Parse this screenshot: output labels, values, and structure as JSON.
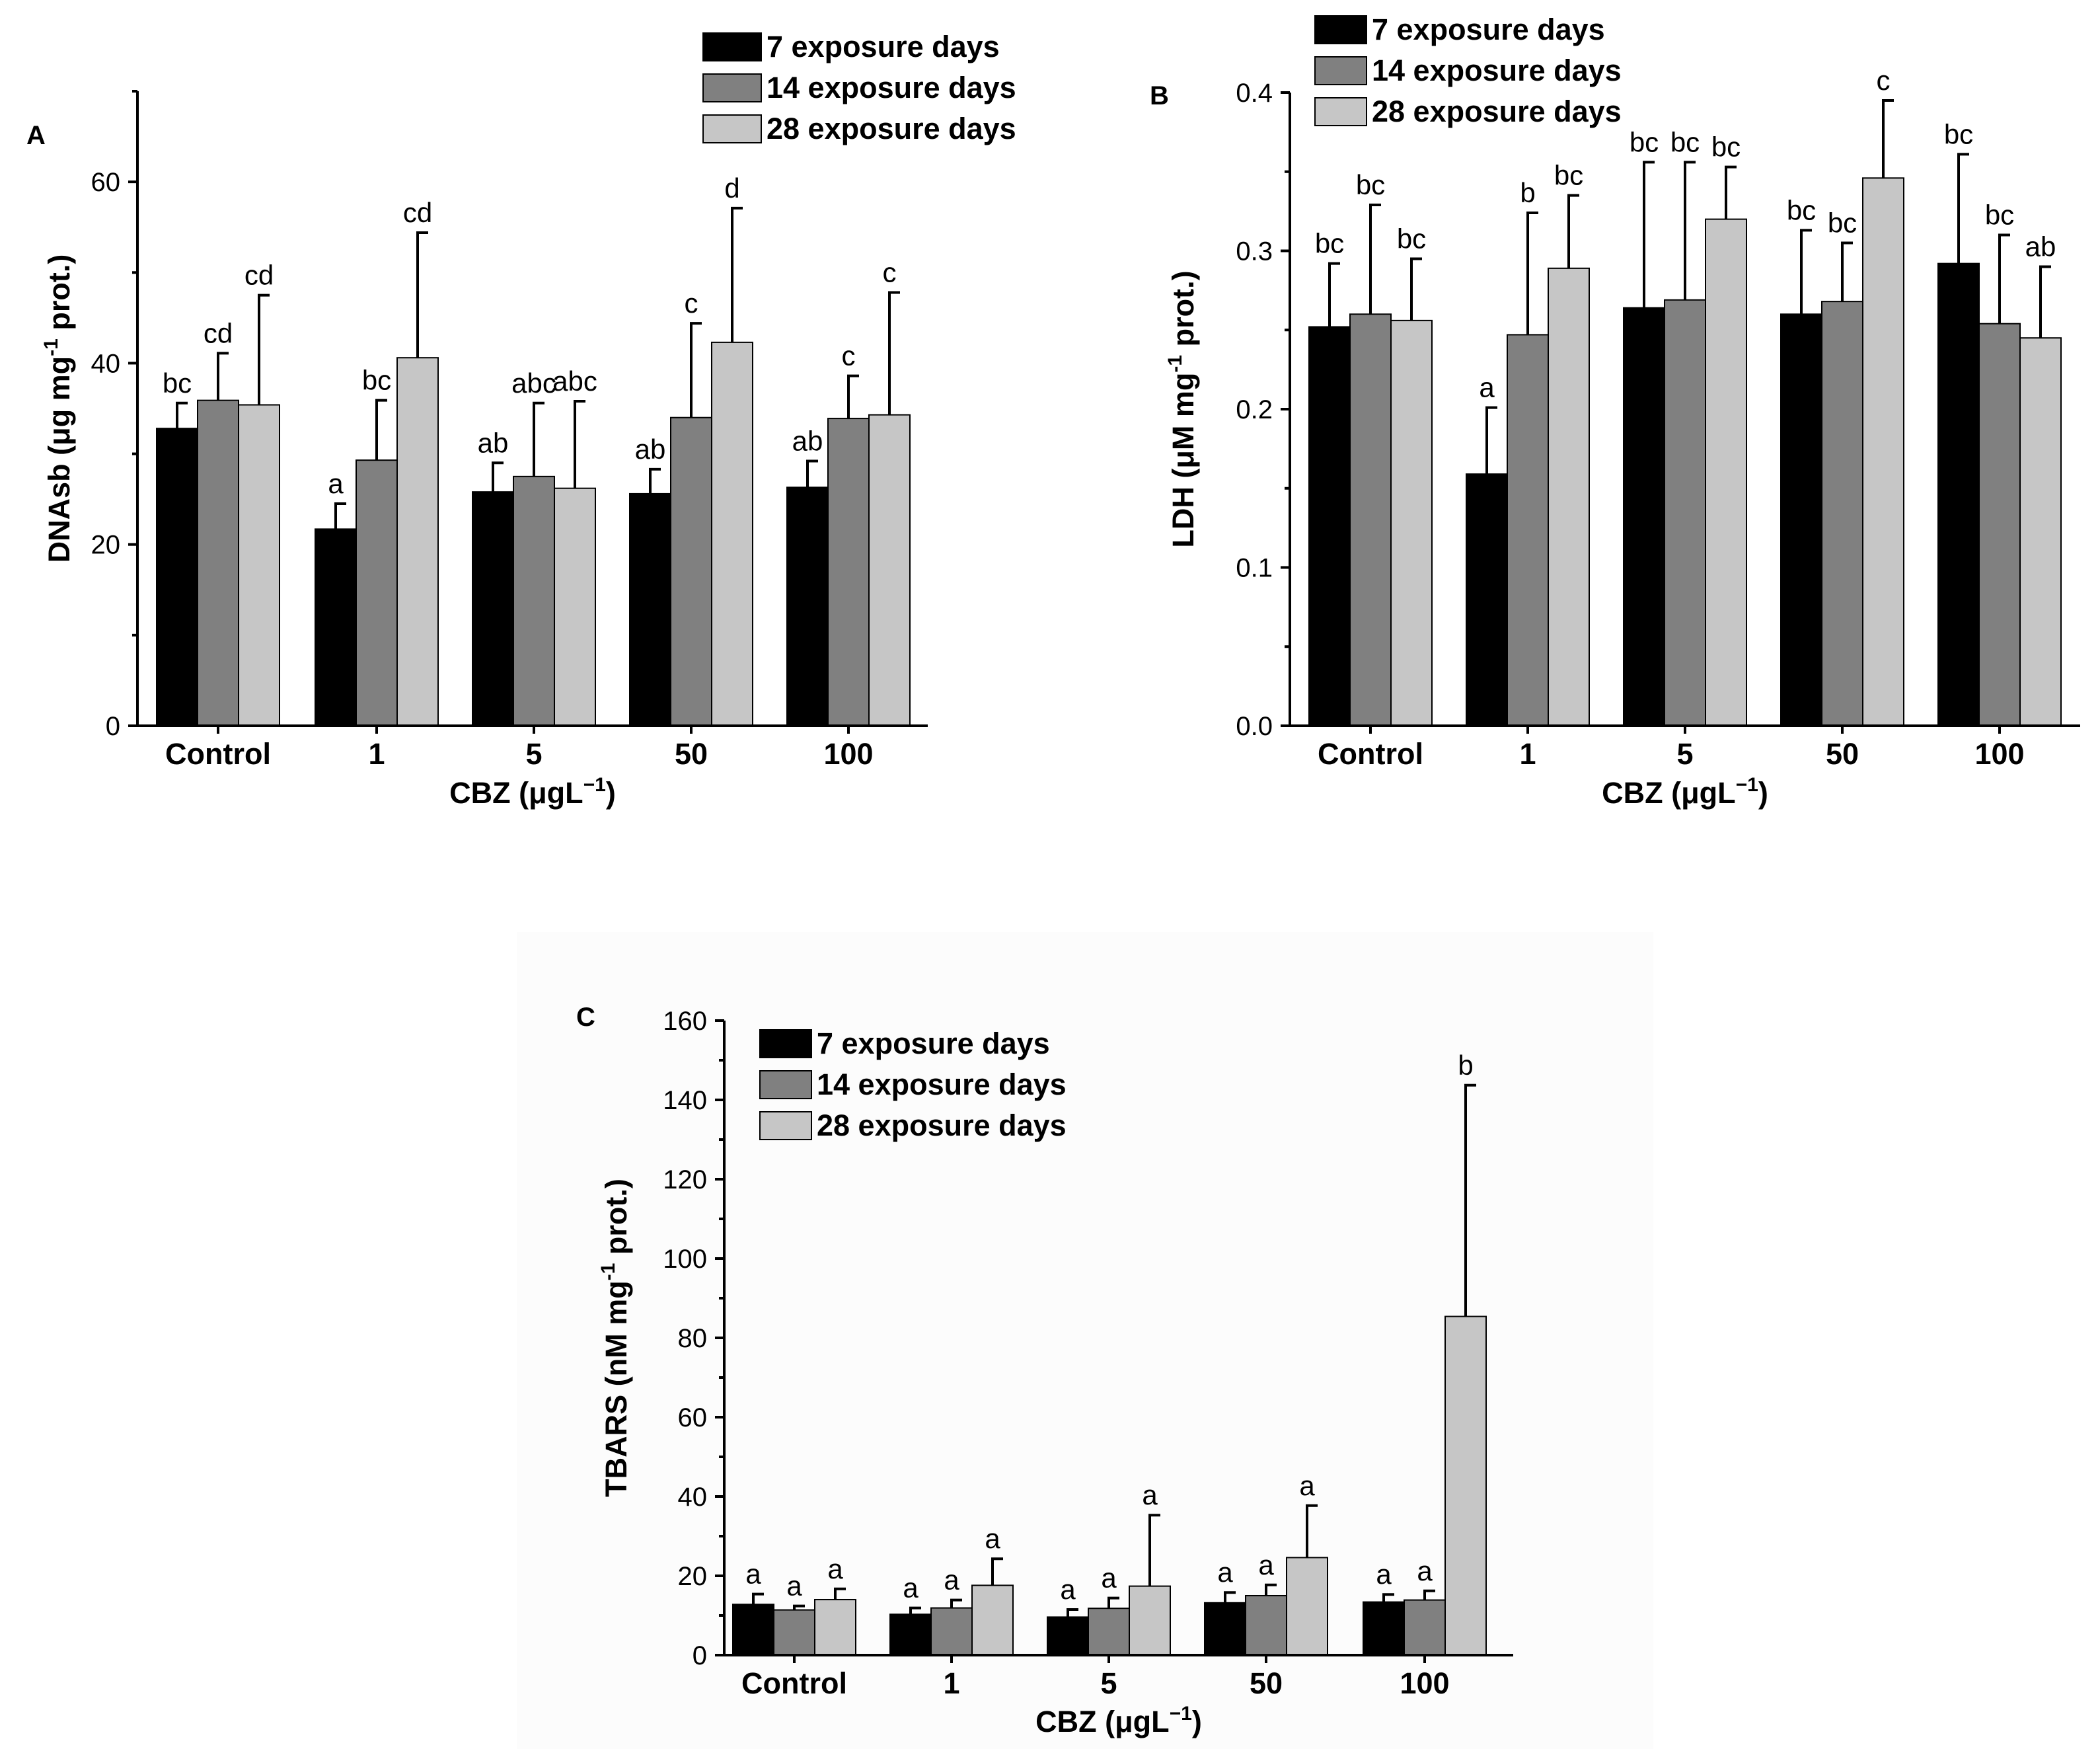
{
  "chart_data": [
    {
      "type": "bar",
      "panel_label": "A",
      "categories": [
        "Control",
        "1",
        "5",
        "50",
        "100"
      ],
      "xlabel_main": "CBZ (μgL",
      "xlabel_sup": "−1",
      "xlabel_end": ")",
      "ylabel_main": "DNAsb (μg mg",
      "ylabel_sup": "-1",
      "ylabel_end": " prot.)",
      "ylim": [
        0,
        70
      ],
      "yticks": [
        0,
        20,
        40,
        60
      ],
      "ytick_labels": [
        "0",
        "20",
        "40",
        "60"
      ],
      "minor_step": 10,
      "decimals": 0,
      "legend_position": "top-right",
      "series": [
        {
          "name": "7 exposure days",
          "color": "#000000",
          "values": [
            32.8,
            21.7,
            25.8,
            25.6,
            26.3
          ],
          "errors": [
            2.8,
            2.8,
            3.2,
            2.7,
            2.9
          ],
          "letters": [
            "bc",
            "a",
            "ab",
            "ab",
            "ab"
          ]
        },
        {
          "name": "14 exposure days",
          "color": "#808080",
          "values": [
            35.9,
            29.3,
            27.5,
            34.0,
            33.9
          ],
          "errors": [
            5.2,
            6.6,
            8.1,
            10.4,
            4.7
          ],
          "letters": [
            "cd",
            "bc",
            "abc",
            "c",
            "c"
          ]
        },
        {
          "name": "28 exposure days",
          "color": "#c6c6c6",
          "values": [
            35.4,
            40.6,
            26.2,
            42.3,
            34.3
          ],
          "errors": [
            12.1,
            13.8,
            9.6,
            14.8,
            13.5
          ],
          "letters": [
            "cd",
            "cd",
            "abc",
            "d",
            "c"
          ]
        }
      ]
    },
    {
      "type": "bar",
      "panel_label": "B",
      "categories": [
        "Control",
        "1",
        "5",
        "50",
        "100"
      ],
      "xlabel_main": "CBZ (μgL",
      "xlabel_sup": "−1",
      "xlabel_end": ")",
      "ylabel_main": "LDH (μM mg",
      "ylabel_sup": "-1",
      "ylabel_end": " prot.)",
      "ylim": [
        0,
        0.4
      ],
      "yticks": [
        0,
        0.1,
        0.2,
        0.3,
        0.4
      ],
      "ytick_labels": [
        "0.0",
        "0.1",
        "0.2",
        "0.3",
        "0.4"
      ],
      "minor_step": 0.05,
      "decimals": 1,
      "legend_position": "top-left",
      "series": [
        {
          "name": "7 exposure days",
          "color": "#000000",
          "values": [
            0.252,
            0.159,
            0.264,
            0.26,
            0.292
          ],
          "errors": [
            0.04,
            0.042,
            0.092,
            0.053,
            0.069
          ],
          "letters": [
            "bc",
            "a",
            "bc",
            "bc",
            "bc"
          ]
        },
        {
          "name": "14 exposure days",
          "color": "#808080",
          "values": [
            0.26,
            0.247,
            0.269,
            0.268,
            0.254
          ],
          "errors": [
            0.069,
            0.077,
            0.087,
            0.037,
            0.056
          ],
          "letters": [
            "bc",
            "b",
            "bc",
            "bc",
            "bc"
          ]
        },
        {
          "name": "28 exposure days",
          "color": "#c6c6c6",
          "values": [
            0.256,
            0.289,
            0.32,
            0.346,
            0.245
          ],
          "errors": [
            0.039,
            0.046,
            0.033,
            0.049,
            0.045
          ],
          "letters": [
            "bc",
            "bc",
            "bc",
            "c",
            "ab"
          ]
        }
      ]
    },
    {
      "type": "bar",
      "panel_label": "C",
      "categories": [
        "Control",
        "1",
        "5",
        "50",
        "100"
      ],
      "xlabel_main": "CBZ (μgL",
      "xlabel_sup": "−1",
      "xlabel_end": ")",
      "ylabel_main": "TBARS (nM mg",
      "ylabel_sup": "-1",
      "ylabel_end": " prot.)",
      "ylim": [
        0,
        160
      ],
      "yticks": [
        0,
        20,
        40,
        60,
        80,
        100,
        120,
        140,
        160
      ],
      "ytick_labels": [
        "0",
        "20",
        "40",
        "60",
        "80",
        "100",
        "120",
        "140",
        "160"
      ],
      "minor_step": 10,
      "decimals": 0,
      "legend_position": "top-left",
      "series": [
        {
          "name": "7 exposure days",
          "color": "#000000",
          "values": [
            12.8,
            10.3,
            9.6,
            13.2,
            13.4
          ],
          "errors": [
            2.6,
            1.6,
            1.9,
            2.6,
            1.9
          ],
          "letters": [
            "a",
            "a",
            "a",
            "a",
            "a"
          ]
        },
        {
          "name": "14 exposure days",
          "color": "#808080",
          "values": [
            11.4,
            11.9,
            11.8,
            15.0,
            13.9
          ],
          "errors": [
            1.0,
            2.0,
            2.6,
            2.7,
            2.3
          ],
          "letters": [
            "a",
            "a",
            "a",
            "a",
            "a"
          ]
        },
        {
          "name": "28 exposure days",
          "color": "#c6c6c6",
          "values": [
            14.0,
            17.6,
            17.4,
            24.6,
            85.4
          ],
          "errors": [
            2.7,
            6.7,
            17.9,
            13.1,
            58.3
          ],
          "letters": [
            "a",
            "a",
            "a",
            "a",
            "b"
          ]
        }
      ]
    }
  ]
}
